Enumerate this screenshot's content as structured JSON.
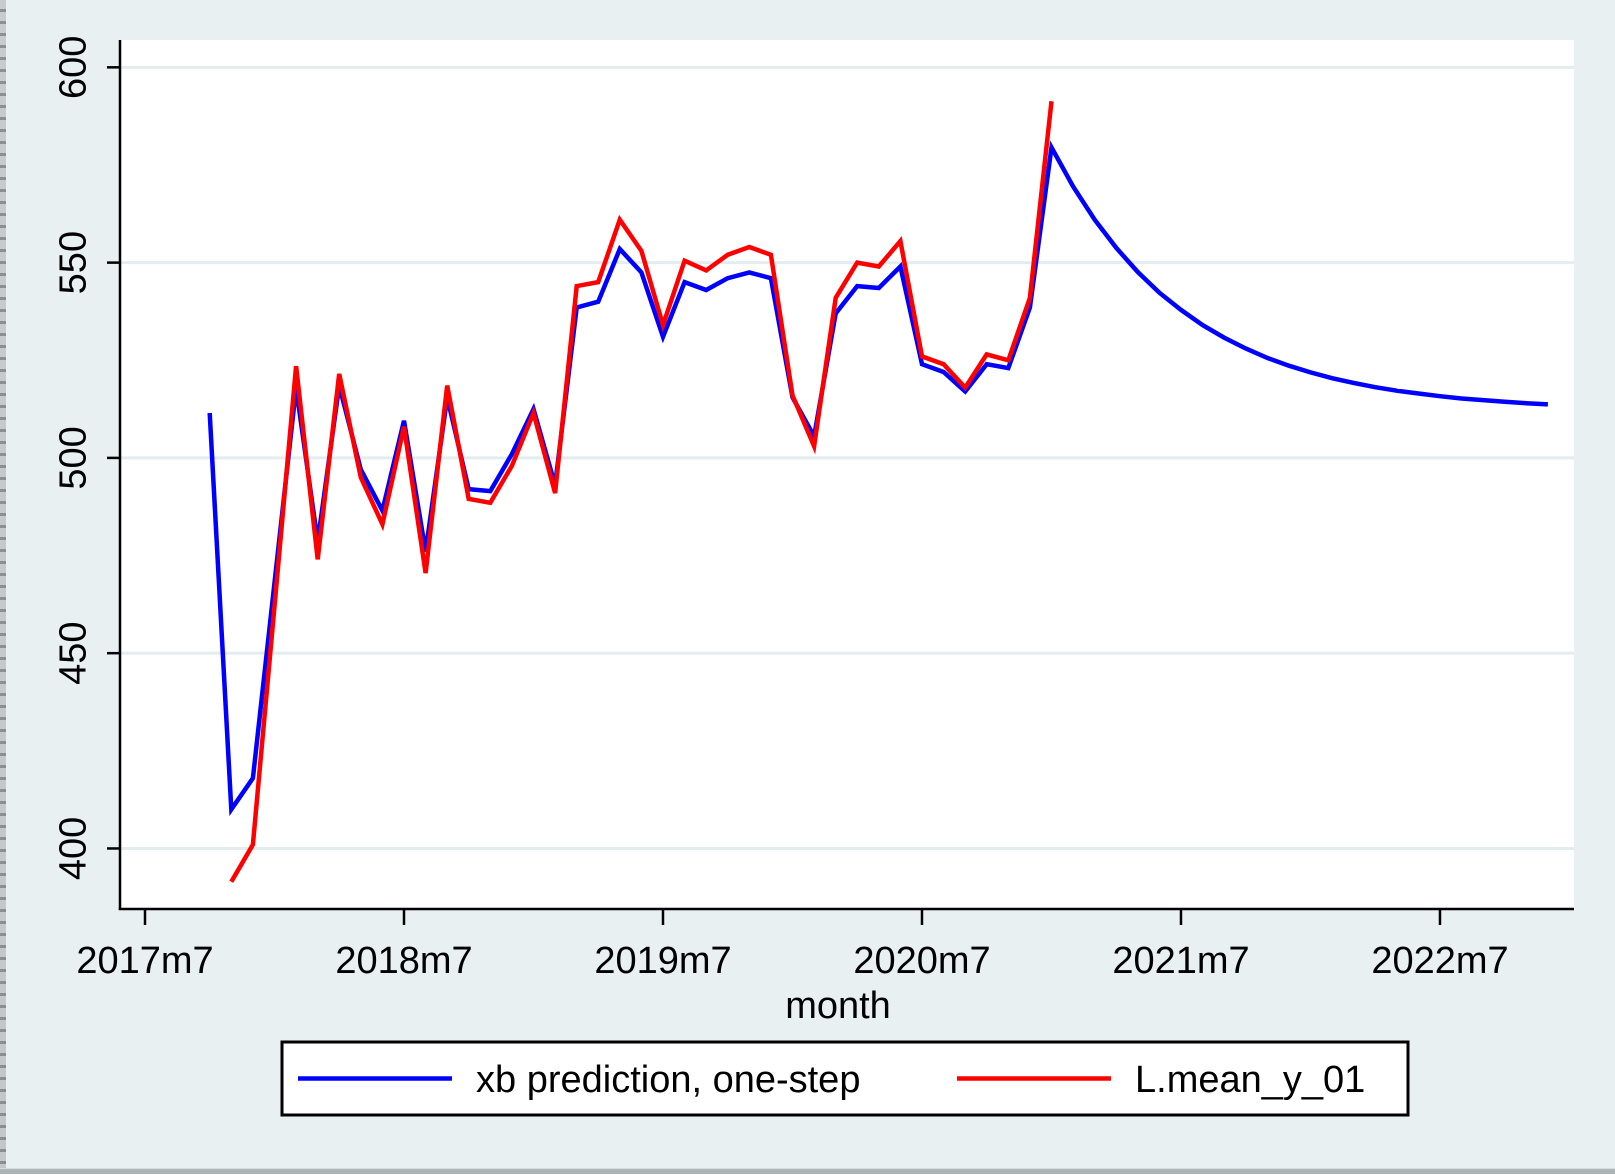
{
  "figure": {
    "background": "#e9f0f2",
    "plot_bg": "#ffffff",
    "grid_color": "#e3edf0",
    "axis_color": "#000000"
  },
  "chart_data": {
    "type": "line",
    "title": "",
    "xlabel": "month",
    "ylabel": "",
    "x_unit": "months since 2017m7",
    "xlim_months": [
      -1.16,
      66.2
    ],
    "ylim": [
      384.5,
      607
    ],
    "grid": "horizontal only",
    "y_ticks": [
      400,
      450,
      500,
      550,
      600
    ],
    "x_ticks_months": [
      0,
      12,
      24,
      36,
      48,
      60
    ],
    "x_tick_labels": [
      "2017m7",
      "2018m7",
      "2019m7",
      "2020m7",
      "2021m7",
      "2022m7"
    ],
    "legend_position": "bottom center, boxed",
    "legend": [
      {
        "label": "xb prediction, one-step",
        "color": "#0000ff"
      },
      {
        "label": "L.mean_y_01",
        "color": "#ff0000"
      }
    ],
    "series": [
      {
        "name": "xb prediction, one-step",
        "color": "#0000ff",
        "points": [
          [
            3,
            511.5
          ],
          [
            4,
            410
          ],
          [
            5,
            418
          ],
          [
            6,
            468
          ],
          [
            7,
            518
          ],
          [
            8,
            478.5
          ],
          [
            9,
            518.5
          ],
          [
            10,
            497
          ],
          [
            11,
            486.5
          ],
          [
            12,
            509.5
          ],
          [
            13,
            476
          ],
          [
            14,
            515.5
          ],
          [
            15,
            492
          ],
          [
            16,
            491.5
          ],
          [
            17,
            501
          ],
          [
            18,
            512.5
          ],
          [
            19,
            493
          ],
          [
            20,
            538.5
          ],
          [
            21,
            540
          ],
          [
            22,
            553.5
          ],
          [
            23,
            547.5
          ],
          [
            24,
            531
          ],
          [
            25,
            545
          ],
          [
            26,
            543
          ],
          [
            27,
            546
          ],
          [
            28,
            547.5
          ],
          [
            29,
            546
          ],
          [
            30,
            515.5
          ],
          [
            31,
            505.5
          ],
          [
            32,
            537
          ],
          [
            33,
            544
          ],
          [
            34,
            543.5
          ],
          [
            35,
            549
          ],
          [
            36,
            524
          ],
          [
            37,
            522
          ],
          [
            38,
            517
          ],
          [
            39,
            524
          ],
          [
            40,
            523
          ],
          [
            41,
            538.5
          ],
          [
            42,
            579.5
          ],
          [
            43,
            569.5
          ],
          [
            44,
            561
          ],
          [
            45,
            553.8
          ],
          [
            46,
            547.6
          ],
          [
            47,
            542.3
          ],
          [
            48,
            537.9
          ],
          [
            49,
            534
          ],
          [
            50,
            530.8
          ],
          [
            51,
            528
          ],
          [
            52,
            525.6
          ],
          [
            53,
            523.6
          ],
          [
            54,
            521.9
          ],
          [
            55,
            520.4
          ],
          [
            56,
            519.2
          ],
          [
            57,
            518.1
          ],
          [
            58,
            517.2
          ],
          [
            59,
            516.5
          ],
          [
            60,
            515.8
          ],
          [
            61,
            515.2
          ],
          [
            62,
            514.8
          ],
          [
            63,
            514.4
          ],
          [
            64,
            514
          ],
          [
            65,
            513.7
          ]
        ]
      },
      {
        "name": "L.mean_y_01",
        "color": "#ff0000",
        "points": [
          [
            4,
            391.5
          ],
          [
            5,
            401
          ],
          [
            6,
            462
          ],
          [
            7,
            523.5
          ],
          [
            8,
            474
          ],
          [
            9,
            521.5
          ],
          [
            10,
            495
          ],
          [
            11,
            483
          ],
          [
            12,
            508
          ],
          [
            13,
            470.5
          ],
          [
            14,
            518.5
          ],
          [
            15,
            489.5
          ],
          [
            16,
            488.5
          ],
          [
            17,
            498
          ],
          [
            18,
            511.5
          ],
          [
            19,
            491
          ],
          [
            20,
            544
          ],
          [
            21,
            545
          ],
          [
            22,
            561
          ],
          [
            23,
            553
          ],
          [
            24,
            534
          ],
          [
            25,
            550.5
          ],
          [
            26,
            548
          ],
          [
            27,
            552
          ],
          [
            28,
            554
          ],
          [
            29,
            552
          ],
          [
            30,
            516
          ],
          [
            31,
            503
          ],
          [
            32,
            541
          ],
          [
            33,
            550
          ],
          [
            34,
            549
          ],
          [
            35,
            555.5
          ],
          [
            36,
            526
          ],
          [
            37,
            524
          ],
          [
            38,
            518
          ],
          [
            39,
            526.5
          ],
          [
            40,
            525
          ],
          [
            41,
            541
          ],
          [
            42,
            591.3
          ]
        ]
      }
    ]
  }
}
